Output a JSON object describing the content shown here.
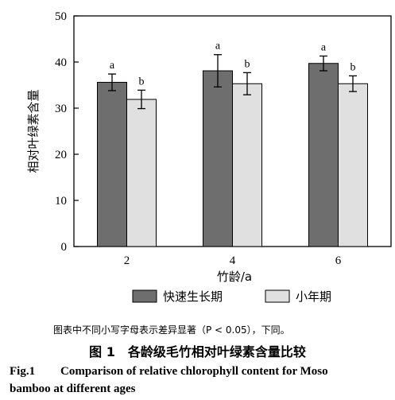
{
  "chart_data": {
    "type": "bar",
    "categories": [
      "2",
      "4",
      "6"
    ],
    "xlabel": "竹龄/a",
    "ylabel": "相对叶绿素含量",
    "ylim": [
      0,
      50
    ],
    "yticks": [
      0,
      10,
      20,
      30,
      40,
      50
    ],
    "grid": false,
    "legend_position": "bottom",
    "series": [
      {
        "name": "快速生长期",
        "color": "#6e6e6e",
        "values": [
          35.6,
          38.1,
          39.7
        ],
        "errors": [
          1.8,
          3.5,
          1.6
        ],
        "labels": [
          "a",
          "a",
          "a"
        ]
      },
      {
        "name": "小年期",
        "color": "#e0e0e0",
        "values": [
          31.9,
          35.3,
          35.3
        ],
        "errors": [
          2.0,
          2.4,
          1.7
        ],
        "labels": [
          "b",
          "b",
          "b"
        ]
      }
    ]
  },
  "note": "图表中不同小写字母表示差异显著（P < 0.05），下同。",
  "caption_cn": "图 1　各龄级毛竹相对叶绿素含量比较",
  "caption_en_figno": "Fig.1",
  "caption_en_line1": "Comparison of relative chlorophyll content for Moso",
  "caption_en_line2": "bamboo at different ages"
}
